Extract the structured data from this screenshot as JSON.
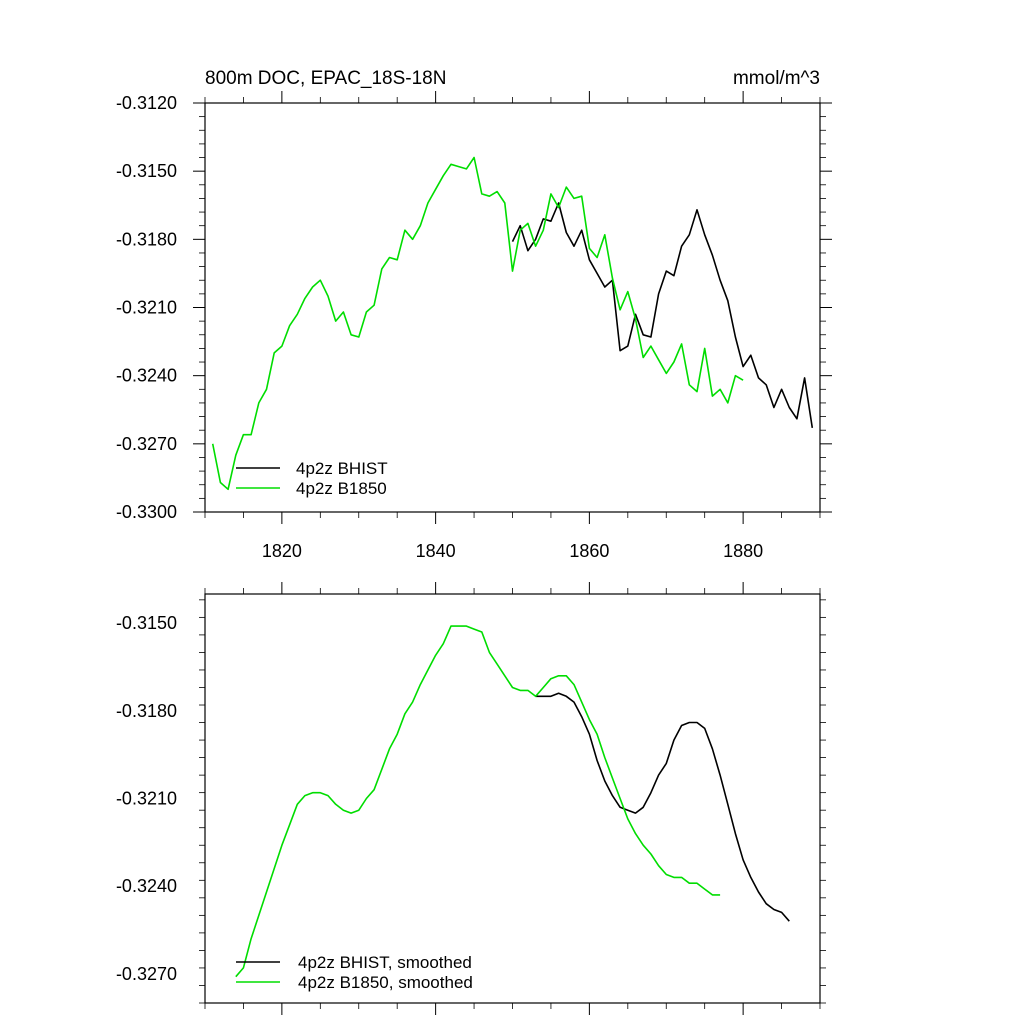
{
  "colors": {
    "bhist": "#000000",
    "b1850": "#00dd00"
  },
  "chart_data": [
    {
      "type": "line",
      "title": "800m DOC, EPAC_18S-18N",
      "units": "mmol/m^3",
      "xlim": [
        1810,
        1890
      ],
      "ylim": [
        -0.33,
        -0.312
      ],
      "xticks": [
        1820,
        1840,
        1860,
        1880
      ],
      "xtick_labels": [
        "1820",
        "1840",
        "1860",
        "1880"
      ],
      "yticks": [
        -0.312,
        -0.315,
        -0.318,
        -0.321,
        -0.324,
        -0.327,
        -0.33
      ],
      "ytick_labels": [
        "-0.3120",
        "-0.3150",
        "-0.3180",
        "-0.3210",
        "-0.3240",
        "-0.3270",
        "-0.3300"
      ],
      "legend_position": "bottom-left",
      "series": [
        {
          "name": "4p2z BHIST",
          "color": "#000000",
          "x": [
            1850,
            1851,
            1852,
            1853,
            1854,
            1855,
            1856,
            1857,
            1858,
            1859,
            1860,
            1861,
            1862,
            1863,
            1864,
            1865,
            1866,
            1867,
            1868,
            1869,
            1870,
            1871,
            1872,
            1873,
            1874,
            1875,
            1876,
            1877,
            1878,
            1879,
            1880,
            1881,
            1882,
            1883,
            1884,
            1885,
            1886,
            1887,
            1888,
            1889
          ],
          "y": [
            -0.3181,
            -0.3174,
            -0.3185,
            -0.318,
            -0.3171,
            -0.3172,
            -0.3164,
            -0.3177,
            -0.3183,
            -0.3176,
            -0.3189,
            -0.3195,
            -0.3201,
            -0.3198,
            -0.3229,
            -0.3227,
            -0.3213,
            -0.3222,
            -0.3223,
            -0.3204,
            -0.3194,
            -0.3196,
            -0.3183,
            -0.3178,
            -0.3167,
            -0.3178,
            -0.3187,
            -0.3198,
            -0.3207,
            -0.3223,
            -0.3236,
            -0.3231,
            -0.3241,
            -0.3244,
            -0.3254,
            -0.3246,
            -0.3254,
            -0.3259,
            -0.3241,
            -0.3263
          ]
        },
        {
          "name": "4p2z B1850",
          "color": "#00dd00",
          "x": [
            1811,
            1812,
            1813,
            1814,
            1815,
            1816,
            1817,
            1818,
            1819,
            1820,
            1821,
            1822,
            1823,
            1824,
            1825,
            1826,
            1827,
            1828,
            1829,
            1830,
            1831,
            1832,
            1833,
            1834,
            1835,
            1836,
            1837,
            1838,
            1839,
            1840,
            1841,
            1842,
            1843,
            1844,
            1845,
            1846,
            1847,
            1848,
            1849,
            1850,
            1851,
            1852,
            1853,
            1854,
            1855,
            1856,
            1857,
            1858,
            1859,
            1860,
            1861,
            1862,
            1863,
            1864,
            1865,
            1866,
            1867,
            1868,
            1869,
            1870,
            1871,
            1872,
            1873,
            1874,
            1875,
            1876,
            1877,
            1878,
            1879,
            1880
          ],
          "y": [
            -0.327,
            -0.3287,
            -0.329,
            -0.3275,
            -0.3266,
            -0.3266,
            -0.3252,
            -0.3246,
            -0.323,
            -0.3227,
            -0.3218,
            -0.3213,
            -0.3206,
            -0.3201,
            -0.3198,
            -0.3205,
            -0.3216,
            -0.3212,
            -0.3222,
            -0.3223,
            -0.3212,
            -0.3209,
            -0.3193,
            -0.3188,
            -0.3189,
            -0.3176,
            -0.318,
            -0.3174,
            -0.3164,
            -0.3158,
            -0.3152,
            -0.3147,
            -0.3148,
            -0.3149,
            -0.3144,
            -0.316,
            -0.3161,
            -0.3159,
            -0.3164,
            -0.3194,
            -0.3176,
            -0.3173,
            -0.3183,
            -0.3176,
            -0.316,
            -0.3166,
            -0.3157,
            -0.3162,
            -0.3161,
            -0.3184,
            -0.3188,
            -0.3178,
            -0.3197,
            -0.3211,
            -0.3203,
            -0.3215,
            -0.3232,
            -0.3227,
            -0.3233,
            -0.3239,
            -0.3234,
            -0.3226,
            -0.3244,
            -0.3247,
            -0.3228,
            -0.3249,
            -0.3246,
            -0.3252,
            -0.324,
            -0.3242
          ]
        }
      ]
    },
    {
      "type": "line",
      "xlim": [
        1810,
        1890
      ],
      "ylim": [
        -0.328,
        -0.314
      ],
      "xticks": [
        1820,
        1840,
        1860,
        1880
      ],
      "yticks": [
        -0.315,
        -0.318,
        -0.321,
        -0.324,
        -0.327
      ],
      "ytick_labels": [
        "-0.3150",
        "-0.3180",
        "-0.3210",
        "-0.3240",
        "-0.3270"
      ],
      "legend_position": "bottom-left",
      "series": [
        {
          "name": "4p2z BHIST, smoothed",
          "color": "#000000",
          "x": [
            1853,
            1854,
            1855,
            1856,
            1857,
            1858,
            1859,
            1860,
            1861,
            1862,
            1863,
            1864,
            1865,
            1866,
            1867,
            1868,
            1869,
            1870,
            1871,
            1872,
            1873,
            1874,
            1875,
            1876,
            1877,
            1878,
            1879,
            1880,
            1881,
            1882,
            1883,
            1884,
            1885,
            1886
          ],
          "y": [
            -0.3175,
            -0.3175,
            -0.3175,
            -0.3174,
            -0.3175,
            -0.3177,
            -0.3182,
            -0.3188,
            -0.3197,
            -0.3204,
            -0.3209,
            -0.3213,
            -0.3214,
            -0.3215,
            -0.3213,
            -0.3208,
            -0.3202,
            -0.3198,
            -0.319,
            -0.3185,
            -0.3184,
            -0.3184,
            -0.3186,
            -0.3193,
            -0.3202,
            -0.3212,
            -0.3222,
            -0.3231,
            -0.3237,
            -0.3242,
            -0.3246,
            -0.3248,
            -0.3249,
            -0.3252
          ]
        },
        {
          "name": "4p2z B1850, smoothed",
          "color": "#00dd00",
          "x": [
            1814,
            1815,
            1816,
            1817,
            1818,
            1819,
            1820,
            1821,
            1822,
            1823,
            1824,
            1825,
            1826,
            1827,
            1828,
            1829,
            1830,
            1831,
            1832,
            1833,
            1834,
            1835,
            1836,
            1837,
            1838,
            1839,
            1840,
            1841,
            1842,
            1843,
            1844,
            1845,
            1846,
            1847,
            1848,
            1849,
            1850,
            1851,
            1852,
            1853,
            1854,
            1855,
            1856,
            1857,
            1858,
            1859,
            1860,
            1861,
            1862,
            1863,
            1864,
            1865,
            1866,
            1867,
            1868,
            1869,
            1870,
            1871,
            1872,
            1873,
            1874,
            1875,
            1876,
            1877
          ],
          "y": [
            -0.3271,
            -0.3268,
            -0.3258,
            -0.325,
            -0.3242,
            -0.3234,
            -0.3226,
            -0.3219,
            -0.3212,
            -0.3209,
            -0.3208,
            -0.3208,
            -0.3209,
            -0.3212,
            -0.3214,
            -0.3215,
            -0.3214,
            -0.321,
            -0.3207,
            -0.32,
            -0.3193,
            -0.3188,
            -0.3181,
            -0.3177,
            -0.3171,
            -0.3166,
            -0.3161,
            -0.3157,
            -0.3151,
            -0.3151,
            -0.3151,
            -0.3152,
            -0.3153,
            -0.316,
            -0.3164,
            -0.3168,
            -0.3172,
            -0.3173,
            -0.3173,
            -0.3175,
            -0.3172,
            -0.3169,
            -0.3168,
            -0.3168,
            -0.3171,
            -0.3177,
            -0.3183,
            -0.3188,
            -0.3196,
            -0.3203,
            -0.321,
            -0.3217,
            -0.3222,
            -0.3226,
            -0.3229,
            -0.3233,
            -0.3236,
            -0.3237,
            -0.3237,
            -0.3239,
            -0.3239,
            -0.3241,
            -0.3243,
            -0.3243
          ]
        }
      ]
    }
  ]
}
